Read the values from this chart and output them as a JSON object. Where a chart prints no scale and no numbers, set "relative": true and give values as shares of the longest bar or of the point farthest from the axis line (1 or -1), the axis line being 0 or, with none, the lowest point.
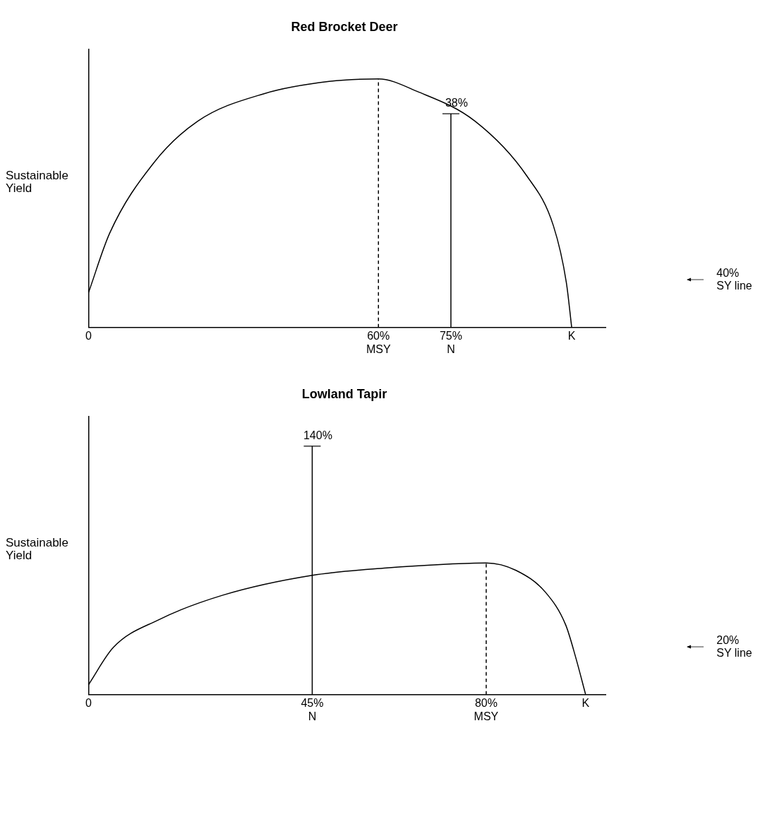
{
  "chart_data": [
    {
      "type": "line",
      "title": "Red Brocket Deer",
      "ylabel": "Sustainable Yield",
      "relative": true,
      "xlim": [
        0,
        107
      ],
      "xticks": [
        {
          "value": 0,
          "label": "0"
        },
        {
          "value": 60,
          "label": "60%\nMSY"
        },
        {
          "value": 75,
          "label": "75%\nN"
        },
        {
          "value": 100,
          "label": "K"
        }
      ],
      "series": [
        {
          "color": "#000000",
          "x": [
            0,
            4.4,
            13.4,
            22.6,
            36.2,
            49.8,
            60,
            68,
            80,
            90.7,
            96.2,
            98.9,
            100
          ],
          "values": [
            0.14,
            0.38,
            0.66,
            0.83,
            0.94,
            0.99,
            1,
            0.95,
            0.83,
            0.61,
            0.41,
            0.18,
            0
          ]
        },
        {
          "color": "#000000",
          "line_style": "dashed",
          "x": [
            60,
            60
          ],
          "values": [
            0,
            1
          ]
        },
        {
          "color": "#000000",
          "x": [
            75,
            75
          ],
          "values": [
            0,
            0.86
          ]
        }
      ],
      "annotations": [
        {
          "text": "38%",
          "x": 75,
          "y": 0.86
        },
        "40% SY line"
      ]
    },
    {
      "type": "line",
      "title": "Lowland Tapir",
      "ylabel": "Sustainable Yield",
      "relative": true,
      "xlim": [
        0,
        104
      ],
      "xticks": [
        {
          "value": 0,
          "label": "0"
        },
        {
          "value": 45,
          "label": "45%\nN"
        },
        {
          "value": 80,
          "label": "80%\nMSY"
        },
        {
          "value": 100,
          "label": "K"
        }
      ],
      "series": [
        {
          "color": "#000000",
          "x": [
            0,
            5,
            14,
            27,
            45,
            60,
            72,
            80,
            86,
            92,
            96,
            98,
            100
          ],
          "values": [
            0.04,
            0.19,
            0.3,
            0.4,
            0.48,
            0.51,
            0.525,
            0.53,
            0.5,
            0.41,
            0.28,
            0.15,
            0
          ]
        },
        {
          "color": "#000000",
          "x": [
            45,
            45
          ],
          "values": [
            0,
            1
          ]
        },
        {
          "color": "#000000",
          "line_style": "dashed",
          "x": [
            80,
            80
          ],
          "values": [
            0,
            0.53
          ]
        }
      ],
      "annotations": [
        {
          "text": "140%",
          "x": 45,
          "y": 1
        },
        "20% SY line"
      ]
    }
  ]
}
